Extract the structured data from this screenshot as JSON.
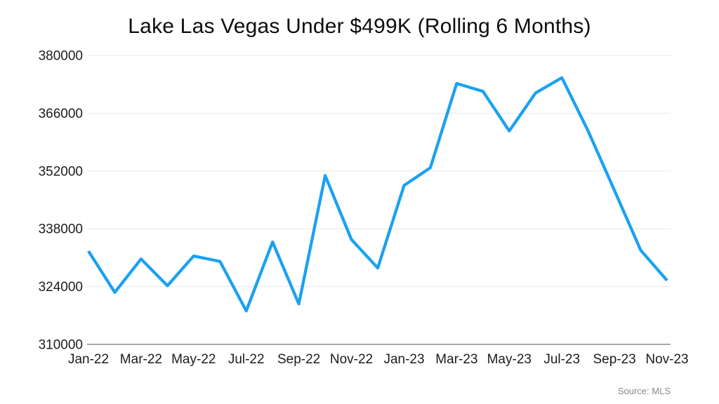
{
  "chart_data": {
    "type": "line",
    "title": "Lake Las Vegas Under $499K (Rolling 6 Months)",
    "source_label": "Source: MLS",
    "x": [
      "Jan-22",
      "Feb-22",
      "Mar-22",
      "Apr-22",
      "May-22",
      "Jun-22",
      "Jul-22",
      "Aug-22",
      "Sep-22",
      "Oct-22",
      "Nov-22",
      "Dec-22",
      "Jan-23",
      "Feb-23",
      "Mar-23",
      "Apr-23",
      "May-23",
      "Jun-23",
      "Jul-23",
      "Aug-23",
      "Sep-23",
      "Oct-23",
      "Nov-23"
    ],
    "values": [
      332600,
      322600,
      330700,
      324200,
      331400,
      330100,
      318100,
      334800,
      319800,
      350900,
      335400,
      328500,
      348500,
      352800,
      373200,
      371300,
      361700,
      370900,
      374600,
      361700,
      347300,
      332800,
      325500
    ],
    "x_tick_labels": [
      "Jan-22",
      "Mar-22",
      "May-22",
      "Jul-22",
      "Sep-22",
      "Nov-22",
      "Jan-23",
      "Mar-23",
      "May-23",
      "Jul-23",
      "Sep-23",
      "Nov-23"
    ],
    "x_tick_every": 2,
    "y_ticks": [
      310000,
      324000,
      338000,
      352000,
      366000,
      380000
    ],
    "ylim": [
      310000,
      380000
    ],
    "grid": true,
    "legend": null,
    "line_color": "#1BA1F2",
    "grid_color": "#e8e8e8",
    "axis_color": "#a8a8a8",
    "tick_label_color": "#1c1c1c"
  }
}
